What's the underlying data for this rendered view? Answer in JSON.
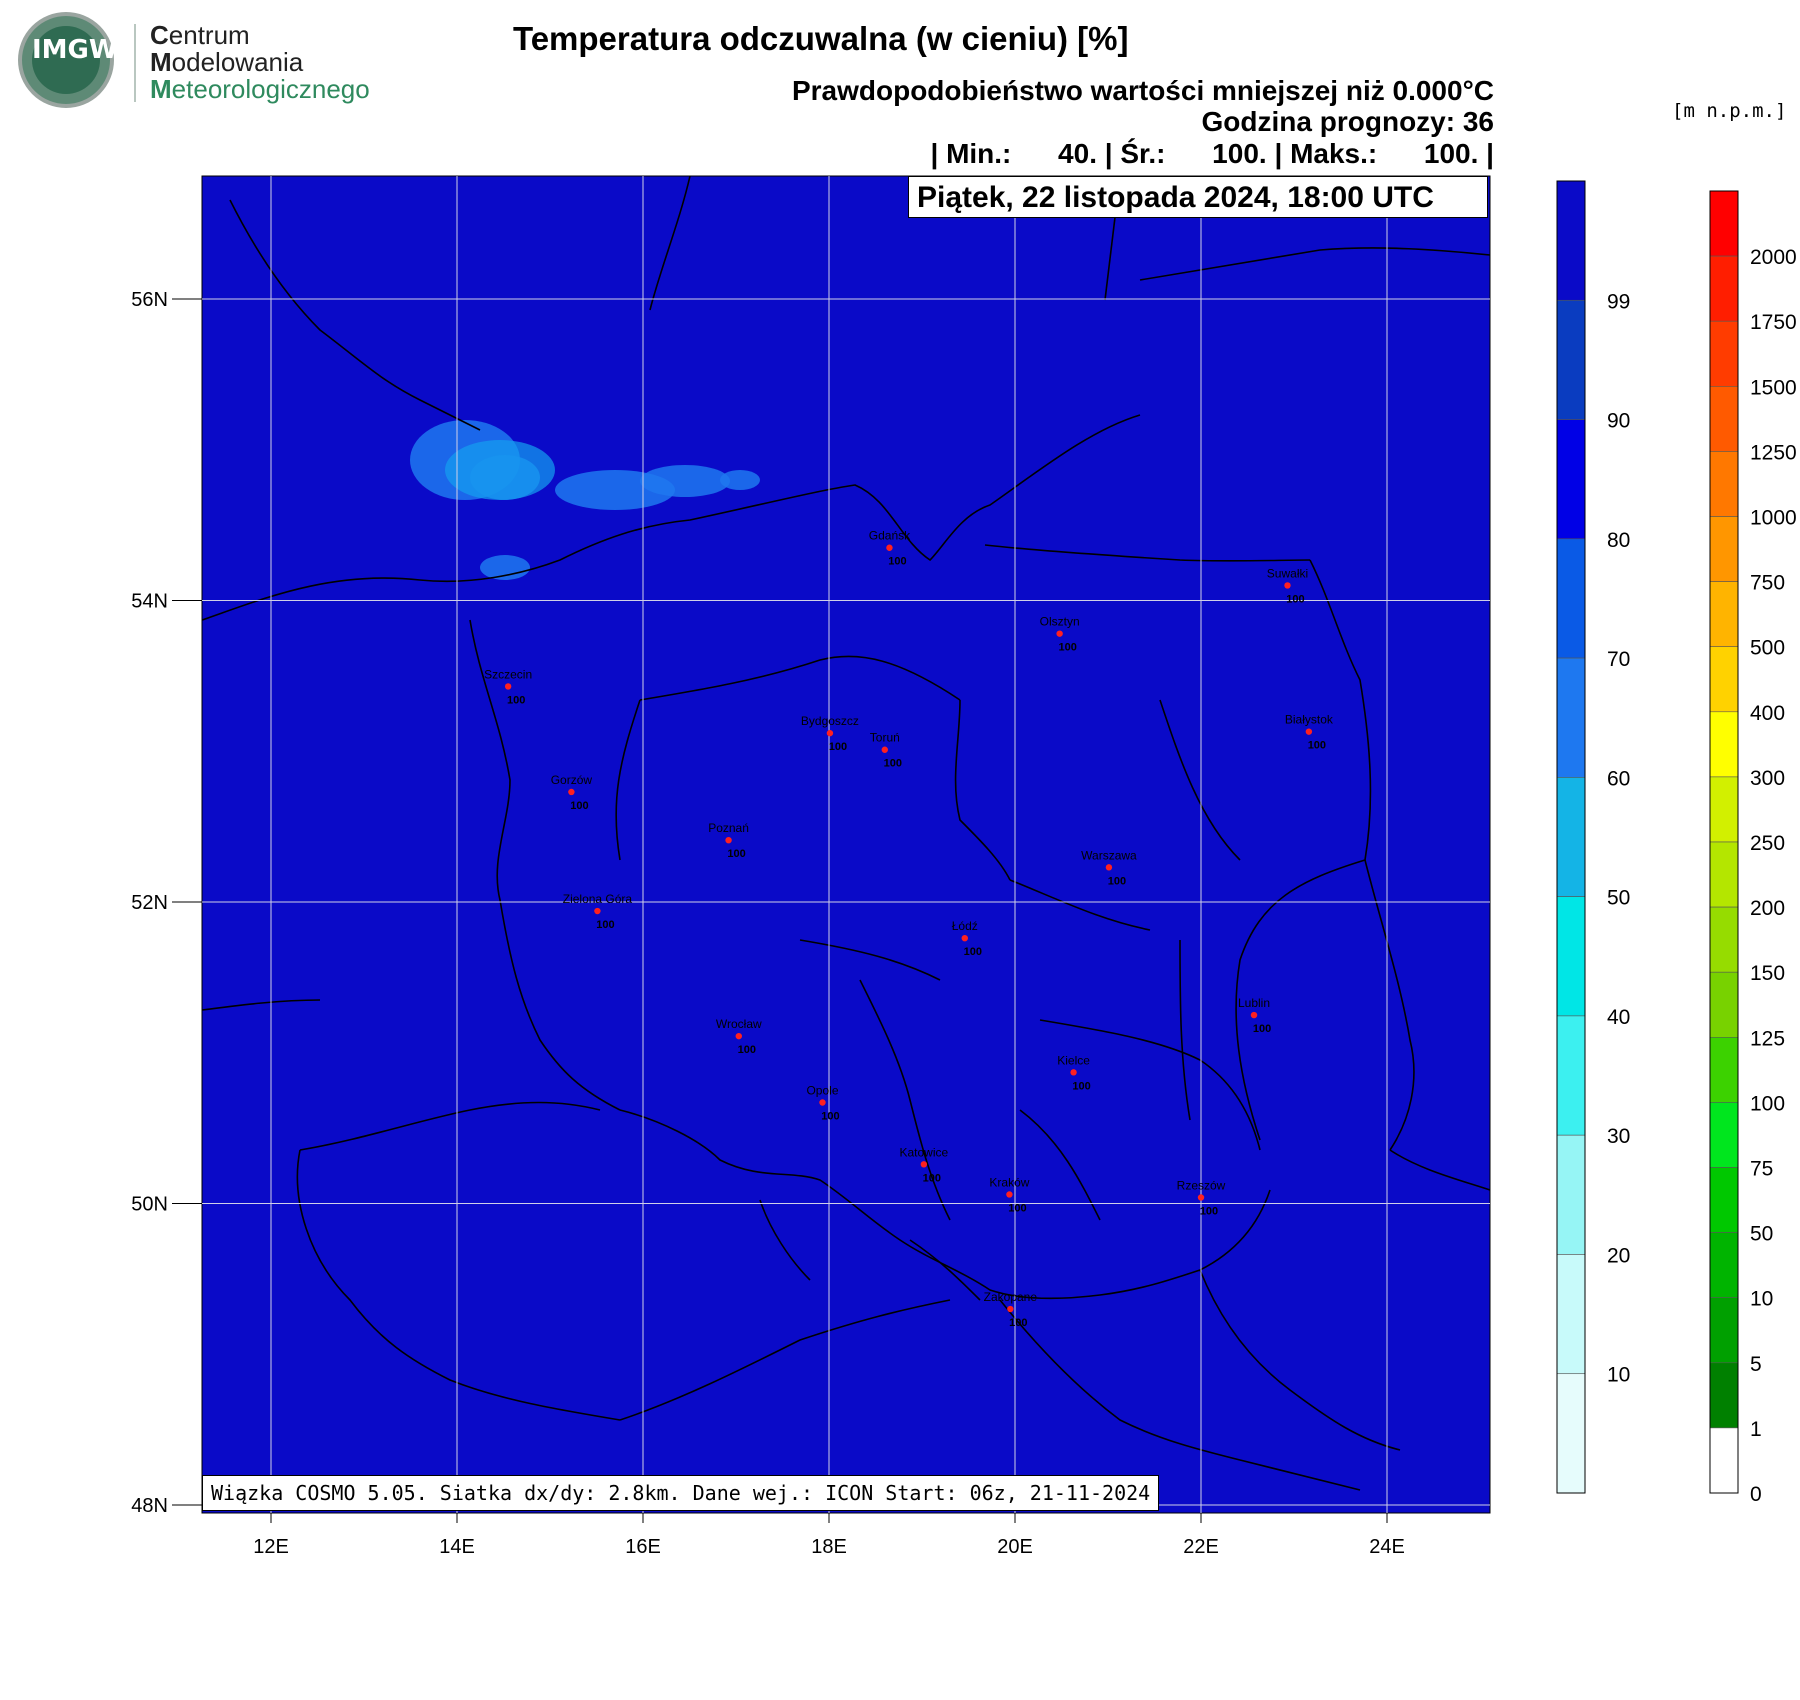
{
  "header": {
    "brand_initial_1": "C",
    "brand_rest_1": "entrum",
    "brand_initial_2": "M",
    "brand_rest_2": "odelowania",
    "brand_initial_3": "M",
    "brand_rest_3": "eteorologicznego",
    "logo_text": "IMGW",
    "title": "Temperatura odczuwalna (w cieniu) [%]",
    "subtitle_prob_prefix": "Prawdopodobieństwo wartości mniejszej niż 0.000",
    "subtitle_prob_unit": "°C",
    "forecast_hour": "Godzina prognozy: 36",
    "stats": "| Min.:      40. | Śr.:      100. | Maks.:      100. |",
    "date": "Piątek, 22 listopada 2024, 18:00 UTC"
  },
  "footer": {
    "model_info": "Wiązka COSMO 5.05. Siatka dx/dy: 2.8km. Dane wej.: ICON Start: 06z, 21-11-2024"
  },
  "map": {
    "background_color": "#0a0ac8",
    "lat_labels": [
      "56N",
      "54N",
      "52N",
      "50N",
      "48N"
    ],
    "lon_labels": [
      "12E",
      "14E",
      "16E",
      "18E",
      "20E",
      "22E",
      "24E"
    ],
    "cities": [
      {
        "name": "Gdańsk",
        "value": "100",
        "lon": 18.65,
        "lat": 54.35
      },
      {
        "name": "Suwałki",
        "value": "100",
        "lon": 22.93,
        "lat": 54.1
      },
      {
        "name": "Olsztyn",
        "value": "100",
        "lon": 20.48,
        "lat": 53.78
      },
      {
        "name": "Szczecin",
        "value": "100",
        "lon": 14.55,
        "lat": 53.43
      },
      {
        "name": "Bydgoszcz",
        "value": "100",
        "lon": 18.01,
        "lat": 53.12
      },
      {
        "name": "Toruń",
        "value": "100",
        "lon": 18.6,
        "lat": 53.01
      },
      {
        "name": "Białystok",
        "value": "100",
        "lon": 23.16,
        "lat": 53.13
      },
      {
        "name": "Gorzów",
        "value": "100",
        "lon": 15.23,
        "lat": 52.73
      },
      {
        "name": "Poznań",
        "value": "100",
        "lon": 16.92,
        "lat": 52.41
      },
      {
        "name": "Warszawa",
        "value": "100",
        "lon": 21.01,
        "lat": 52.23
      },
      {
        "name": "Zielona Góra",
        "value": "100",
        "lon": 15.51,
        "lat": 51.94
      },
      {
        "name": "Łódź",
        "value": "100",
        "lon": 19.46,
        "lat": 51.76
      },
      {
        "name": "Lublin",
        "value": "100",
        "lon": 22.57,
        "lat": 51.25
      },
      {
        "name": "Wrocław",
        "value": "100",
        "lon": 17.03,
        "lat": 51.11
      },
      {
        "name": "Kielce",
        "value": "100",
        "lon": 20.63,
        "lat": 50.87
      },
      {
        "name": "Opole",
        "value": "100",
        "lon": 17.93,
        "lat": 50.67
      },
      {
        "name": "Katowice",
        "value": "100",
        "lon": 19.02,
        "lat": 50.26
      },
      {
        "name": "Kraków",
        "value": "100",
        "lon": 19.94,
        "lat": 50.06
      },
      {
        "name": "Rzeszów",
        "value": "100",
        "lon": 22.0,
        "lat": 50.04
      },
      {
        "name": "Zakopane",
        "value": "100",
        "lon": 19.95,
        "lat": 49.3
      }
    ]
  },
  "legend_probability": {
    "ticks": [
      "99",
      "90",
      "80",
      "70",
      "60",
      "50",
      "40",
      "30",
      "20",
      "10"
    ],
    "colors": [
      "#0a0ac8",
      "#0a3cc0",
      "#0000e6",
      "#0a5ae6",
      "#1e78f0",
      "#14b4e6",
      "#00e6e6",
      "#3cf0f0",
      "#96f5f5",
      "#c8fafa",
      "#e6fcfc"
    ]
  },
  "legend_elevation": {
    "units": "[m n.p.m.]",
    "ticks": [
      "2000",
      "1750",
      "1500",
      "1250",
      "1000",
      "750",
      "500",
      "400",
      "300",
      "250",
      "200",
      "150",
      "125",
      "100",
      "75",
      "50",
      "10",
      "5",
      "1",
      "0"
    ],
    "colors": [
      "#ff0000",
      "#ff1e00",
      "#ff3c00",
      "#ff5a00",
      "#ff7800",
      "#ff9600",
      "#ffb400",
      "#ffd200",
      "#ffff00",
      "#d2f000",
      "#b4e600",
      "#96dc00",
      "#78d200",
      "#3cd200",
      "#00e61e",
      "#00c800",
      "#00b400",
      "#00a000",
      "#008000",
      "#ffffff"
    ]
  }
}
